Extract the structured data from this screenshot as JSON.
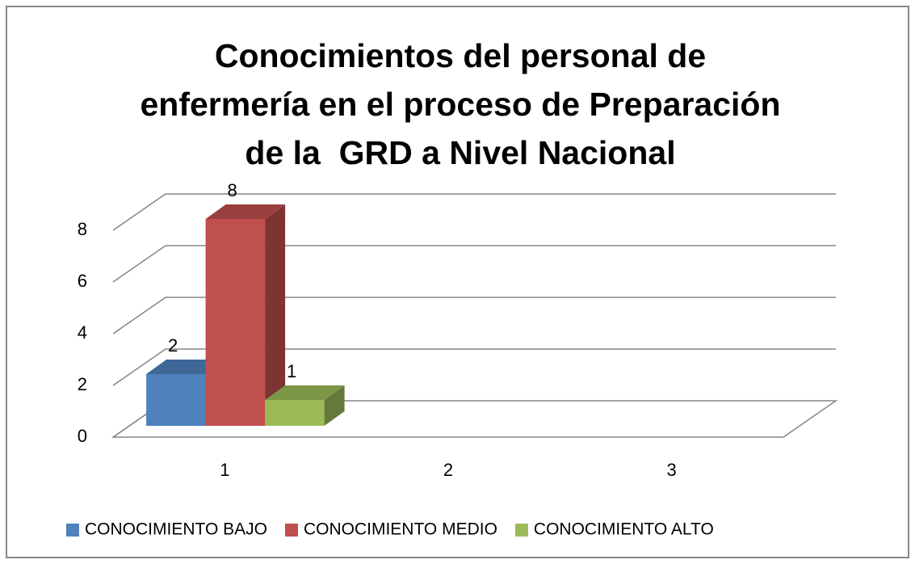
{
  "chart_data": {
    "type": "bar3d",
    "title": [
      "Conocimientos del personal de",
      "enfermería en el proceso de Preparación",
      "de la  GRD a Nivel Nacional"
    ],
    "categories": [
      "1",
      "2",
      "3"
    ],
    "series": [
      {
        "name": "CONOCIMIENTO BAJO",
        "color": "#4f81bd",
        "values": [
          2,
          null,
          null
        ]
      },
      {
        "name": "CONOCIMIENTO MEDIO",
        "color": "#c0504d",
        "values": [
          8,
          null,
          null
        ]
      },
      {
        "name": "CONOCIMIENTO ALTO",
        "color": "#9bbb59",
        "values": [
          1,
          null,
          null
        ]
      }
    ],
    "ylim": [
      0,
      8
    ],
    "yticks": [
      0,
      2,
      4,
      6,
      8
    ],
    "grid": true,
    "legend": "bottom"
  }
}
